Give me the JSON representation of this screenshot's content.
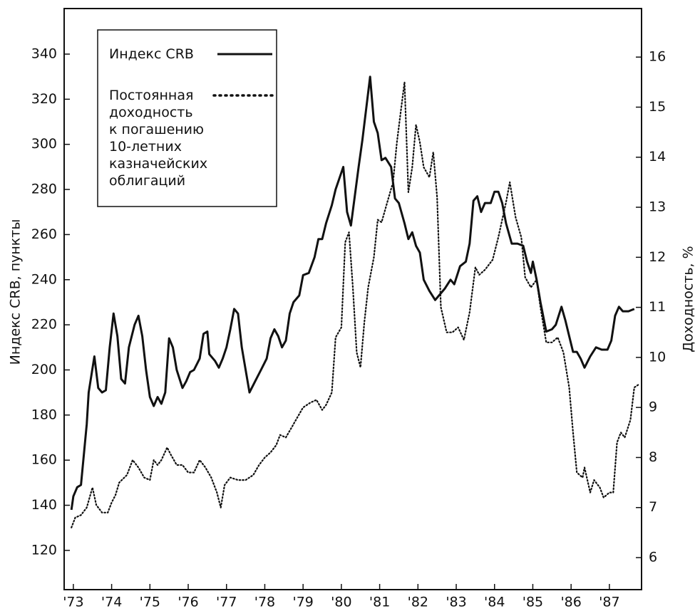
{
  "chart_data": {
    "type": "line",
    "y_label": "Индекс CRB, пункты",
    "y2_label": "Доходность, %",
    "xlim": [
      1972.76,
      1987.84
    ],
    "ylim": [
      102.6,
      360.2
    ],
    "y2lim": [
      5.36,
      16.97
    ],
    "xticks": [
      {
        "value": 1973,
        "label": "'73"
      },
      {
        "value": 1974,
        "label": "'74"
      },
      {
        "value": 1975,
        "label": "'75"
      },
      {
        "value": 1976,
        "label": "'76"
      },
      {
        "value": 1977,
        "label": "'77"
      },
      {
        "value": 1978,
        "label": "'78"
      },
      {
        "value": 1979,
        "label": "'79"
      },
      {
        "value": 1980,
        "label": "'80"
      },
      {
        "value": 1981,
        "label": "'81"
      },
      {
        "value": 1982,
        "label": "'82"
      },
      {
        "value": 1983,
        "label": "'83"
      },
      {
        "value": 1984,
        "label": "'84"
      },
      {
        "value": 1985,
        "label": "'85"
      },
      {
        "value": 1986,
        "label": "'86"
      },
      {
        "value": 1987,
        "label": "'87"
      }
    ],
    "yticks": [
      120,
      140,
      160,
      180,
      200,
      220,
      240,
      260,
      280,
      300,
      320,
      340
    ],
    "y2ticks": [
      6,
      7,
      8,
      9,
      10,
      11,
      12,
      13,
      14,
      15,
      16
    ],
    "grid": false,
    "legend": "upper left",
    "series": [
      {
        "name": "Индекс CRB",
        "color": "#111111",
        "style": "solid",
        "axis": "y",
        "x": [
          1972.95,
          1973.0,
          1973.1,
          1973.2,
          1973.35,
          1973.4,
          1973.55,
          1973.65,
          1973.75,
          1973.85,
          1973.95,
          1974.05,
          1974.15,
          1974.25,
          1974.35,
          1974.45,
          1974.6,
          1974.7,
          1974.8,
          1974.9,
          1975.0,
          1975.1,
          1975.2,
          1975.3,
          1975.4,
          1975.5,
          1975.6,
          1975.7,
          1975.85,
          1975.95,
          1976.05,
          1976.15,
          1976.3,
          1976.4,
          1976.5,
          1976.55,
          1976.7,
          1976.8,
          1976.9,
          1977.0,
          1977.1,
          1977.2,
          1977.3,
          1977.4,
          1977.5,
          1977.6,
          1977.75,
          1977.9,
          1978.05,
          1978.15,
          1978.25,
          1978.35,
          1978.45,
          1978.55,
          1978.65,
          1978.75,
          1978.9,
          1979.0,
          1979.15,
          1979.3,
          1979.4,
          1979.5,
          1979.6,
          1979.75,
          1979.85,
          1979.95,
          1980.05,
          1980.15,
          1980.25,
          1980.35,
          1980.45,
          1980.55,
          1980.65,
          1980.75,
          1980.85,
          1980.95,
          1981.05,
          1981.15,
          1981.3,
          1981.4,
          1981.5,
          1981.65,
          1981.75,
          1981.85,
          1981.95,
          1982.05,
          1982.15,
          1982.3,
          1982.45,
          1982.55,
          1982.7,
          1982.85,
          1982.95,
          1983.1,
          1983.25,
          1983.35,
          1983.45,
          1983.55,
          1983.65,
          1983.75,
          1983.9,
          1984.0,
          1984.1,
          1984.2,
          1984.3,
          1984.45,
          1984.6,
          1984.75,
          1984.85,
          1984.95,
          1985.0,
          1985.1,
          1985.2,
          1985.35,
          1985.5,
          1985.6,
          1985.75,
          1985.85,
          1985.95,
          1986.05,
          1986.15,
          1986.25,
          1986.35,
          1986.5,
          1986.65,
          1986.8,
          1986.95,
          1987.05,
          1987.15,
          1987.25,
          1987.35,
          1987.5,
          1987.65
        ],
        "values": [
          138,
          144,
          148,
          149,
          176,
          190,
          206,
          192,
          190,
          191,
          210,
          225,
          215,
          196,
          194,
          210,
          220,
          224,
          215,
          200,
          188,
          184,
          188,
          185,
          190,
          214,
          210,
          200,
          192,
          195,
          199,
          200,
          205,
          216,
          217,
          207,
          204,
          201,
          205,
          210,
          218,
          227,
          225,
          210,
          200,
          190,
          195,
          200,
          205,
          214,
          218,
          215,
          210,
          213,
          225,
          230,
          233,
          242,
          243,
          250,
          258,
          258,
          265,
          273,
          280,
          285,
          290,
          270,
          264,
          277,
          290,
          302,
          316,
          330,
          310,
          305,
          293,
          294,
          290,
          276,
          274,
          265,
          258,
          261,
          255,
          252,
          240,
          235,
          231,
          233,
          236,
          240,
          238,
          246,
          248,
          256,
          275,
          277,
          270,
          274,
          274,
          279,
          279,
          274,
          265,
          256,
          256,
          255,
          248,
          243,
          248,
          240,
          230,
          217,
          218,
          220,
          228,
          222,
          215,
          208,
          208,
          205,
          201,
          206,
          210,
          209,
          209,
          213,
          224,
          228,
          226,
          226,
          227
        ]
      },
      {
        "name": "Постоянная\nдоходность\nк погашению\n10-летних\nказначейских\nоблигаций",
        "color": "#111111",
        "style": "dotted",
        "axis": "y2",
        "x": [
          1972.95,
          1973.05,
          1973.2,
          1973.35,
          1973.5,
          1973.6,
          1973.75,
          1973.9,
          1974.0,
          1974.1,
          1974.2,
          1974.4,
          1974.55,
          1974.7,
          1974.85,
          1975.0,
          1975.1,
          1975.2,
          1975.3,
          1975.45,
          1975.55,
          1975.7,
          1975.85,
          1976.0,
          1976.15,
          1976.3,
          1976.45,
          1976.6,
          1976.75,
          1976.85,
          1976.95,
          1977.1,
          1977.3,
          1977.5,
          1977.7,
          1977.85,
          1978.0,
          1978.15,
          1978.3,
          1978.4,
          1978.55,
          1978.7,
          1978.85,
          1979.0,
          1979.2,
          1979.35,
          1979.5,
          1979.6,
          1979.75,
          1979.85,
          1980.0,
          1980.1,
          1980.2,
          1980.3,
          1980.4,
          1980.5,
          1980.6,
          1980.7,
          1980.85,
          1980.95,
          1981.05,
          1981.2,
          1981.35,
          1981.45,
          1981.55,
          1981.65,
          1981.75,
          1981.85,
          1981.95,
          1982.05,
          1982.15,
          1982.3,
          1982.4,
          1982.5,
          1982.6,
          1982.75,
          1982.9,
          1983.05,
          1983.2,
          1983.35,
          1983.5,
          1983.6,
          1983.75,
          1983.95,
          1984.1,
          1984.3,
          1984.4,
          1984.55,
          1984.7,
          1984.8,
          1984.95,
          1985.1,
          1985.2,
          1985.35,
          1985.5,
          1985.65,
          1985.8,
          1985.95,
          1986.05,
          1986.15,
          1986.3,
          1986.35,
          1986.5,
          1986.6,
          1986.75,
          1986.85,
          1987.0,
          1987.1,
          1987.2,
          1987.3,
          1987.4,
          1987.55,
          1987.65,
          1987.75
        ],
        "values": [
          6.6,
          6.8,
          6.85,
          7.0,
          7.4,
          7.05,
          6.9,
          6.9,
          7.1,
          7.25,
          7.5,
          7.65,
          7.95,
          7.8,
          7.6,
          7.55,
          7.95,
          7.85,
          7.95,
          8.2,
          8.05,
          7.85,
          7.85,
          7.7,
          7.7,
          7.95,
          7.8,
          7.6,
          7.3,
          7.0,
          7.45,
          7.6,
          7.55,
          7.55,
          7.65,
          7.85,
          8.0,
          8.1,
          8.25,
          8.45,
          8.4,
          8.6,
          8.8,
          9.0,
          9.1,
          9.15,
          8.95,
          9.05,
          9.3,
          10.4,
          10.6,
          12.3,
          12.5,
          11.4,
          10.1,
          9.8,
          10.7,
          11.4,
          12.0,
          12.75,
          12.7,
          13.1,
          13.5,
          14.3,
          14.9,
          15.5,
          13.3,
          13.8,
          14.65,
          14.3,
          13.8,
          13.6,
          14.1,
          13.2,
          11.0,
          10.5,
          10.5,
          10.6,
          10.35,
          10.9,
          11.8,
          11.65,
          11.75,
          11.95,
          12.4,
          13.1,
          13.5,
          12.8,
          12.4,
          11.6,
          11.4,
          11.55,
          11.0,
          10.3,
          10.3,
          10.4,
          10.1,
          9.4,
          8.5,
          7.7,
          7.6,
          7.8,
          7.3,
          7.55,
          7.4,
          7.2,
          7.3,
          7.3,
          8.3,
          8.5,
          8.4,
          8.75,
          9.4,
          9.45
        ]
      }
    ]
  }
}
